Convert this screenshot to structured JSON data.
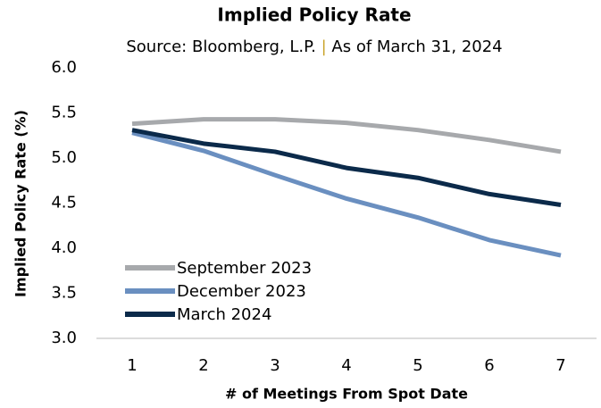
{
  "chart_data": {
    "type": "line",
    "title": "Implied Policy Rate",
    "subtitle": {
      "source": "Source: Bloomberg, L.P.",
      "separator": "|",
      "as_of": "As of March 31, 2024",
      "separator_color": "#c9a227"
    },
    "x_label": "# of Meetings From Spot Date",
    "y_label": "Implied Policy Rate (%)",
    "x": [
      1,
      2,
      3,
      4,
      5,
      6,
      7
    ],
    "xlim": [
      0.5,
      7.5
    ],
    "xticks": [
      1,
      2,
      3,
      4,
      5,
      6,
      7
    ],
    "ylim": [
      3,
      6
    ],
    "yticks": [
      {
        "value": 3,
        "label": "3.0"
      },
      3.5,
      {
        "value": 4,
        "label": "4.0"
      },
      4.5,
      {
        "value": 5,
        "label": "5.0"
      },
      5.5,
      {
        "value": 6,
        "label": "6.0"
      }
    ],
    "grid": false,
    "legend": "lower left",
    "series": [
      {
        "name": "September 2023",
        "color": "#a7a9ac",
        "values": [
          5.38,
          5.43,
          5.43,
          5.39,
          5.31,
          5.2,
          5.07
        ]
      },
      {
        "name": "December 2023",
        "color": "#6a8fc0",
        "values": [
          5.28,
          5.08,
          4.81,
          4.55,
          4.34,
          4.09,
          3.92
        ]
      },
      {
        "name": "March 2024",
        "color": "#0b2a4a",
        "values": [
          5.31,
          5.16,
          5.07,
          4.89,
          4.78,
          4.6,
          4.48
        ]
      }
    ]
  }
}
